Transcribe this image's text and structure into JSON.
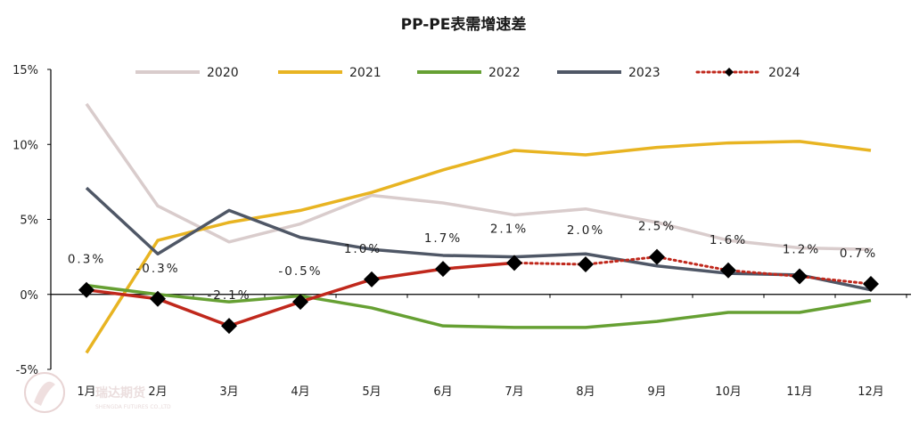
{
  "chart_data": {
    "type": "line",
    "title": "PP-PE表需增速差",
    "categories": [
      "1月",
      "2月",
      "3月",
      "4月",
      "5月",
      "6月",
      "7月",
      "8月",
      "9月",
      "10月",
      "11月",
      "12月"
    ],
    "y_ticks": [
      "-5%",
      "0%",
      "5%",
      "10%",
      "15%"
    ],
    "ylim": [
      -5,
      15
    ],
    "y_tick_values": [
      -5,
      0,
      5,
      10,
      15
    ],
    "legend_position": "top",
    "grid": false,
    "series": [
      {
        "name": "2020",
        "color": "#d9cccc",
        "style": "solid",
        "values": [
          12.7,
          5.9,
          3.5,
          4.7,
          6.6,
          6.1,
          5.3,
          5.7,
          4.8,
          3.6,
          3.1,
          3.0
        ]
      },
      {
        "name": "2021",
        "color": "#e8b422",
        "style": "solid",
        "values": [
          -3.9,
          3.6,
          4.8,
          5.6,
          6.8,
          8.3,
          9.6,
          9.3,
          9.8,
          10.1,
          10.2,
          9.6
        ]
      },
      {
        "name": "2022",
        "color": "#66a033",
        "style": "solid",
        "values": [
          0.6,
          0.0,
          -0.5,
          -0.1,
          -0.9,
          -2.1,
          -2.2,
          -2.2,
          -1.8,
          -1.2,
          -1.2,
          -0.4
        ]
      },
      {
        "name": "2023",
        "color": "#4f5766",
        "style": "solid",
        "values": [
          7.1,
          2.7,
          5.6,
          3.8,
          3.0,
          2.6,
          2.5,
          2.7,
          1.9,
          1.4,
          1.3,
          0.3
        ]
      },
      {
        "name": "2024",
        "color": "#c0281c",
        "style": "dotted",
        "marker": "diamond",
        "solid_until_index": 6,
        "values": [
          0.3,
          -0.3,
          -2.1,
          -0.5,
          1.0,
          1.7,
          2.1,
          2.0,
          2.5,
          1.6,
          1.2,
          0.7
        ],
        "data_labels": [
          "0.3%",
          "-0.3%",
          "-2.1%",
          "-0.5%",
          "1.0%",
          "1.7%",
          "2.1%",
          "2.0%",
          "2.5%",
          "1.6%",
          "1.2%",
          "0.7%"
        ]
      }
    ]
  },
  "watermark": {
    "name": "瑞达期货",
    "sub": "SHENGDA FUTURES CO.,LTD"
  }
}
